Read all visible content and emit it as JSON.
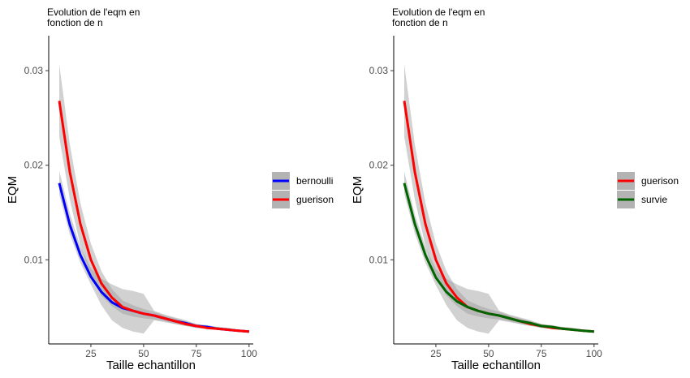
{
  "chart_data": [
    {
      "type": "line",
      "title": "Evolution de l'eqm en\nfonction de n",
      "xlabel": "Taille echantillon",
      "ylabel": "EQM",
      "xlim": [
        5,
        102
      ],
      "ylim": [
        0.0011,
        0.0337
      ],
      "xticks": [
        25,
        50,
        75,
        100
      ],
      "xtick_labels": [
        "25",
        "50",
        "75",
        "100"
      ],
      "yticks": [
        0.01,
        0.02,
        0.03
      ],
      "ytick_labels": [
        "0.01",
        "0.02",
        "0.03"
      ],
      "legend_position": "right",
      "grid": false,
      "series": [
        {
          "name": "bernoulli",
          "color": "#0000ff",
          "x": [
            10,
            15,
            20,
            25,
            30,
            35,
            40,
            45,
            50,
            55,
            60,
            65,
            70,
            75,
            80,
            85,
            90,
            95,
            100
          ],
          "y": [
            0.0181,
            0.0137,
            0.0105,
            0.0082,
            0.0066,
            0.0055,
            0.0049,
            0.0046,
            0.0043,
            0.0041,
            0.0038,
            0.0035,
            0.0033,
            0.003,
            0.0029,
            0.0027,
            0.0026,
            0.0025,
            0.0024
          ],
          "ci_lower": [
            0.0169,
            0.0127,
            0.0097,
            0.0074,
            0.0052,
            0.0036,
            0.0028,
            0.0024,
            0.0022,
            0.0036,
            0.0034,
            0.0032,
            0.003,
            0.0028,
            0.0027,
            0.0026,
            0.0025,
            0.0024,
            0.0023
          ],
          "ci_upper": [
            0.0194,
            0.0149,
            0.0114,
            0.0091,
            0.008,
            0.0074,
            0.0069,
            0.0067,
            0.0064,
            0.0046,
            0.0042,
            0.0039,
            0.0036,
            0.0032,
            0.0031,
            0.0029,
            0.0028,
            0.0026,
            0.0025
          ]
        },
        {
          "name": "guerison",
          "color": "#ff0000",
          "x": [
            10,
            15,
            20,
            25,
            30,
            35,
            40,
            45,
            50,
            55,
            60,
            65,
            70,
            75,
            80,
            85,
            90,
            95,
            100
          ],
          "y": [
            0.0268,
            0.0193,
            0.0138,
            0.01,
            0.0075,
            0.006,
            0.005,
            0.0046,
            0.0043,
            0.0041,
            0.0038,
            0.0035,
            0.0032,
            0.003,
            0.0028,
            0.0027,
            0.0026,
            0.0025,
            0.0024
          ],
          "ci_lower": [
            0.023,
            0.0164,
            0.0115,
            0.0082,
            0.0062,
            0.0051,
            0.0043,
            0.004,
            0.0038,
            0.0037,
            0.0035,
            0.0032,
            0.003,
            0.0028,
            0.0027,
            0.0026,
            0.0025,
            0.0024,
            0.0023
          ],
          "ci_upper": [
            0.0307,
            0.0222,
            0.016,
            0.0117,
            0.0088,
            0.0069,
            0.0057,
            0.0052,
            0.0048,
            0.0045,
            0.0041,
            0.0038,
            0.0035,
            0.0032,
            0.003,
            0.0029,
            0.0028,
            0.0026,
            0.0025
          ]
        }
      ]
    },
    {
      "type": "line",
      "title": "Evolution de l'eqm en\nfonction de n",
      "xlabel": "Taille echantillon",
      "ylabel": "EQM",
      "xlim": [
        5,
        102
      ],
      "ylim": [
        0.0011,
        0.0337
      ],
      "xticks": [
        25,
        50,
        75,
        100
      ],
      "xtick_labels": [
        "25",
        "50",
        "75",
        "100"
      ],
      "yticks": [
        0.01,
        0.02,
        0.03
      ],
      "ytick_labels": [
        "0.01",
        "0.02",
        "0.03"
      ],
      "legend_position": "right",
      "grid": false,
      "series": [
        {
          "name": "guerison",
          "color": "#ff0000",
          "x": [
            10,
            15,
            20,
            25,
            30,
            35,
            40,
            45,
            50,
            55,
            60,
            65,
            70,
            75,
            80,
            85,
            90,
            95,
            100
          ],
          "y": [
            0.0268,
            0.0193,
            0.0138,
            0.01,
            0.0075,
            0.006,
            0.005,
            0.0046,
            0.0043,
            0.0041,
            0.0038,
            0.0035,
            0.0032,
            0.003,
            0.0028,
            0.0027,
            0.0026,
            0.0025,
            0.0024
          ],
          "ci_lower": [
            0.023,
            0.0164,
            0.0115,
            0.0082,
            0.0062,
            0.0051,
            0.0043,
            0.004,
            0.0038,
            0.0037,
            0.0035,
            0.0032,
            0.003,
            0.0028,
            0.0027,
            0.0026,
            0.0025,
            0.0024,
            0.0023
          ],
          "ci_upper": [
            0.0307,
            0.0222,
            0.016,
            0.0117,
            0.0088,
            0.0069,
            0.0057,
            0.0052,
            0.0048,
            0.0045,
            0.0041,
            0.0038,
            0.0035,
            0.0032,
            0.003,
            0.0029,
            0.0028,
            0.0026,
            0.0025
          ]
        },
        {
          "name": "survie",
          "color": "#006400",
          "x": [
            10,
            15,
            20,
            25,
            30,
            35,
            40,
            45,
            50,
            55,
            60,
            65,
            70,
            75,
            80,
            85,
            90,
            95,
            100
          ],
          "y": [
            0.0181,
            0.0138,
            0.0105,
            0.0081,
            0.0066,
            0.0056,
            0.005,
            0.0046,
            0.0043,
            0.0041,
            0.0038,
            0.0035,
            0.0033,
            0.003,
            0.0029,
            0.0027,
            0.0026,
            0.0025,
            0.0024
          ],
          "ci_lower": [
            0.017,
            0.0128,
            0.0097,
            0.0073,
            0.0052,
            0.0036,
            0.0028,
            0.0024,
            0.0022,
            0.0036,
            0.0034,
            0.0032,
            0.003,
            0.0028,
            0.0027,
            0.0026,
            0.0025,
            0.0024,
            0.0023
          ],
          "ci_upper": [
            0.0193,
            0.0148,
            0.0114,
            0.009,
            0.008,
            0.0074,
            0.0069,
            0.0067,
            0.0064,
            0.0046,
            0.0042,
            0.0039,
            0.0036,
            0.0032,
            0.0031,
            0.0029,
            0.0028,
            0.0026,
            0.0025
          ]
        }
      ]
    }
  ]
}
